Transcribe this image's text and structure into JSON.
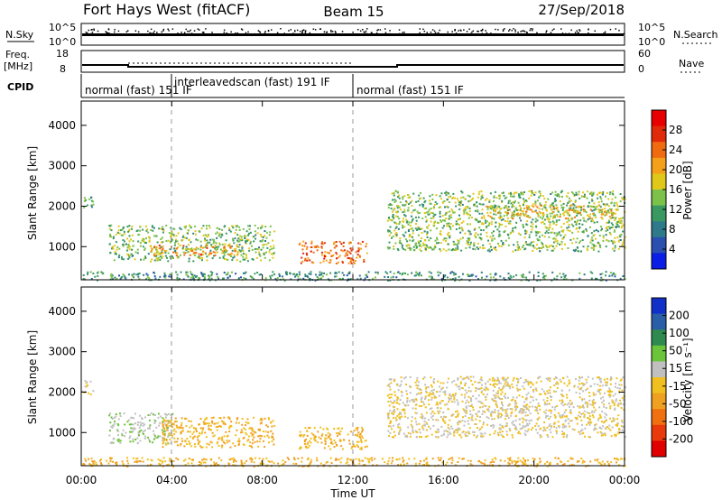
{
  "header": {
    "title": "Fort Hays West (fitACF)",
    "beam": "Beam 15",
    "date": "27/Sep/2018"
  },
  "panels": {
    "nsky_label": "N.Sky",
    "nsky_ticks": [
      "10^5",
      "10^0"
    ],
    "nsearch_label": "N.Search",
    "nsearch_ticks": [
      "10^5",
      "10^0"
    ],
    "freq_label": "Freq.",
    "freq_unit": "[MHz]",
    "freq_ticks": [
      "18",
      "8"
    ],
    "nave_label": "Nave",
    "nave_ticks": [
      "60",
      "0"
    ],
    "cpid_label": "CPID",
    "cpid_segments": [
      {
        "label": "normal (fast) 151 IF",
        "start": 0,
        "end": 4
      },
      {
        "label": "interleavedscan (fast) 191 IF",
        "start": 4,
        "end": 12
      },
      {
        "label": "normal (fast) 151 IF",
        "start": 12,
        "end": 24
      }
    ]
  },
  "axes": {
    "x_label": "Time UT",
    "x_ticks": [
      "00:00",
      "04:00",
      "08:00",
      "12:00",
      "16:00",
      "20:00",
      "00:00"
    ],
    "y_label": "Slant Range [km]",
    "y_ticks": [
      "1000",
      "2000",
      "3000",
      "4000"
    ]
  },
  "colorbars": {
    "power": {
      "label": "Power [dB]",
      "ticks": [
        "4",
        "8",
        "12",
        "16",
        "20",
        "24",
        "28"
      ],
      "colors": [
        "#0a1ee6",
        "#2a4fb0",
        "#2f7a8a",
        "#3a9960",
        "#7cc24a",
        "#e0c81a",
        "#f5a01a",
        "#f06a10",
        "#e02a0a",
        "#e80000"
      ]
    },
    "velocity": {
      "label": "Velocity [m s⁻¹]",
      "ticks": [
        "200",
        "100",
        "50",
        "15",
        "-15",
        "-50",
        "-100",
        "-200"
      ],
      "colors": [
        "#1030c8",
        "#2a5fa8",
        "#2f8a50",
        "#6cc43a",
        "#c0c0c0",
        "#f0c020",
        "#f0a020",
        "#f07010",
        "#e83a0a",
        "#e00000"
      ]
    }
  },
  "chart_data": [
    {
      "type": "heatmap",
      "title": "",
      "xlabel": "Time UT",
      "ylabel": "Slant Range [km]",
      "xlim": [
        0,
        24
      ],
      "ylim": [
        180,
        4600
      ],
      "colorbar_label": "Power [dB]",
      "colorbar_range": [
        0,
        32
      ],
      "regions": [
        {
          "t_start": 0.0,
          "t_end": 0.5,
          "r_min": 1950,
          "r_max": 2300,
          "value": 12
        },
        {
          "t_start": 1.2,
          "t_end": 8.5,
          "r_min": 650,
          "r_max": 1550,
          "value": 14
        },
        {
          "t_start": 3.0,
          "t_end": 7.0,
          "r_min": 800,
          "r_max": 1050,
          "value": 22
        },
        {
          "t_start": 9.6,
          "t_end": 12.6,
          "r_min": 600,
          "r_max": 1150,
          "value": 24
        },
        {
          "t_start": 13.5,
          "t_end": 24.0,
          "r_min": 900,
          "r_max": 2400,
          "value": 14
        },
        {
          "t_start": 17.5,
          "t_end": 23.5,
          "r_min": 1700,
          "r_max": 2050,
          "value": 19
        },
        {
          "t_start": 0.0,
          "t_end": 24.0,
          "r_min": 180,
          "r_max": 400,
          "value": 10
        }
      ]
    },
    {
      "type": "heatmap",
      "title": "",
      "xlabel": "Time UT",
      "ylabel": "Slant Range [km]",
      "xlim": [
        0,
        24
      ],
      "ylim": [
        180,
        4600
      ],
      "colorbar_label": "Velocity [m s⁻¹]",
      "colorbar_range": [
        -200,
        200
      ],
      "regions": [
        {
          "t_start": 0.0,
          "t_end": 0.5,
          "r_min": 1950,
          "r_max": 2300,
          "value": 0
        },
        {
          "t_start": 1.2,
          "t_end": 4.0,
          "r_min": 750,
          "r_max": 1500,
          "value": 30
        },
        {
          "t_start": 3.5,
          "t_end": 8.5,
          "r_min": 650,
          "r_max": 1400,
          "value": -40
        },
        {
          "t_start": 9.6,
          "t_end": 12.6,
          "r_min": 600,
          "r_max": 1150,
          "value": -40
        },
        {
          "t_start": 13.5,
          "t_end": 24.0,
          "r_min": 900,
          "r_max": 2400,
          "value": 0
        },
        {
          "t_start": 0.0,
          "t_end": 24.0,
          "r_min": 180,
          "r_max": 400,
          "value": -40
        }
      ]
    }
  ]
}
